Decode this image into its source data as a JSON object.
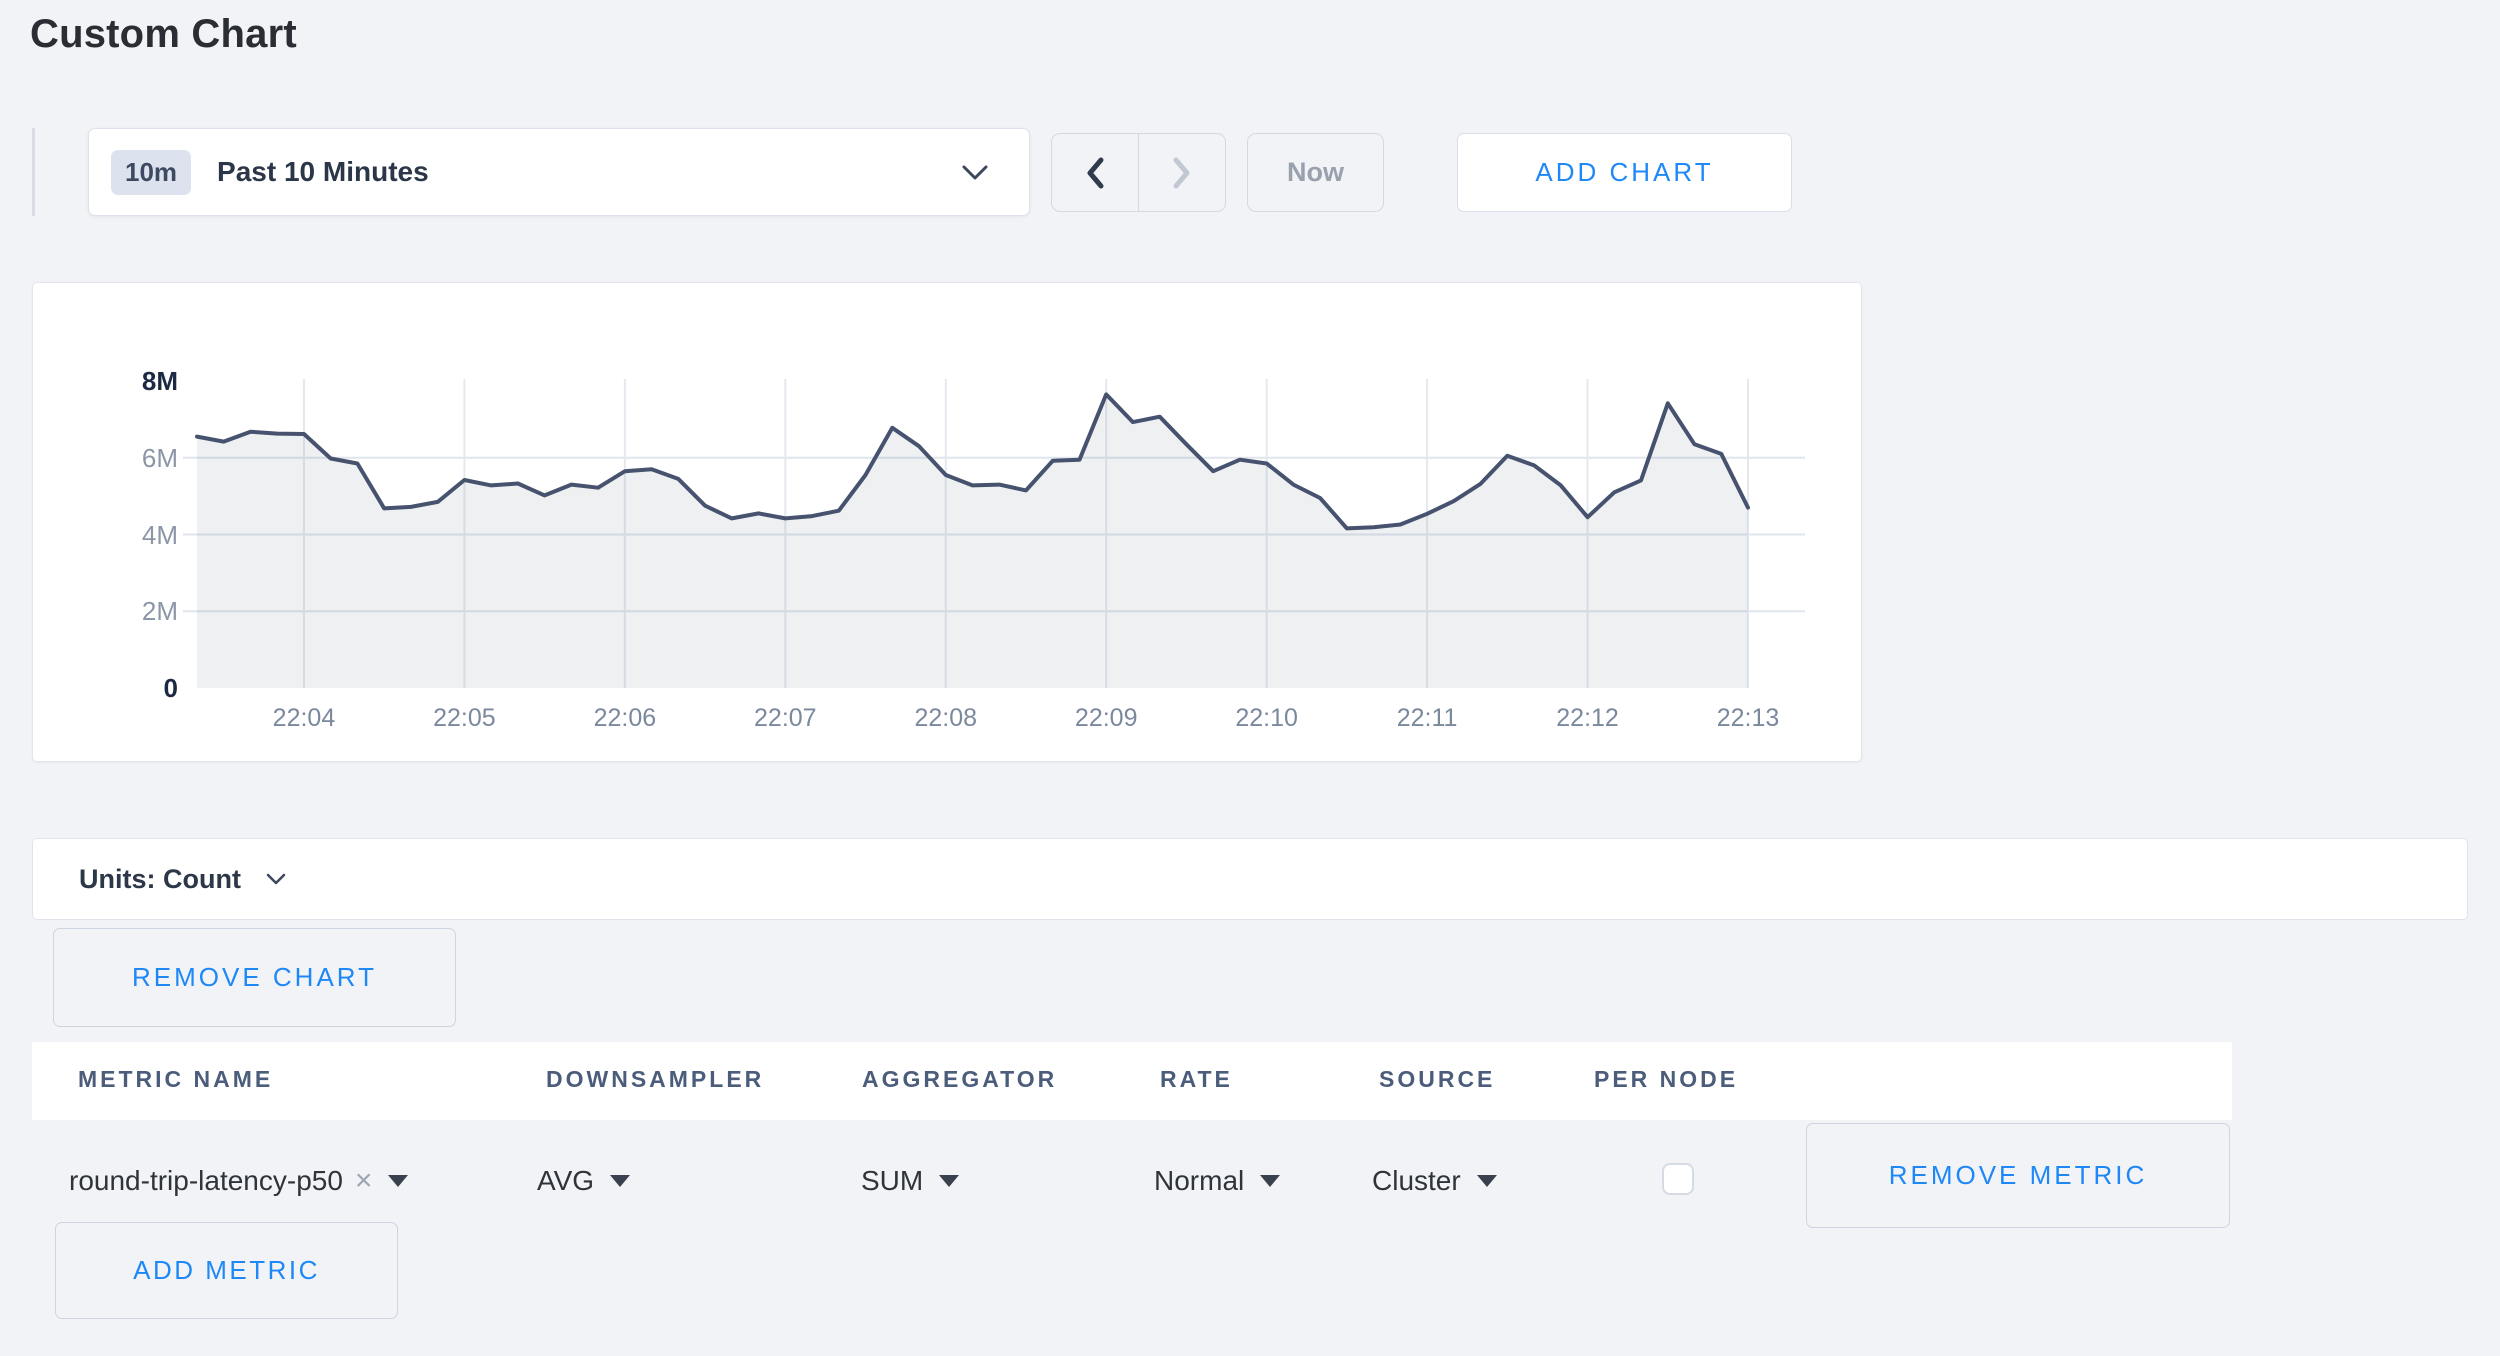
{
  "page": {
    "title": "Custom Chart"
  },
  "colors": {
    "accent_blue": "#1e88f7",
    "chart_line": "#46526e",
    "chart_fill": "#e9ecf1",
    "page_background": "#f2f3f6"
  },
  "toolbar": {
    "time_range_badge": "10m",
    "time_range_label": "Past 10 Minutes",
    "now_label": "Now",
    "add_chart_label": "ADD CHART"
  },
  "units_bar": {
    "label": "Units: Count"
  },
  "buttons": {
    "remove_chart": "REMOVE CHART",
    "remove_metric": "REMOVE METRIC",
    "add_metric": "ADD METRIC"
  },
  "metrics_table": {
    "headers": [
      "METRIC NAME",
      "DOWNSAMPLER",
      "AGGREGATOR",
      "RATE",
      "SOURCE",
      "PER NODE"
    ],
    "row": {
      "metric_name": "round-trip-latency-p50",
      "downsampler": "AVG",
      "aggregator": "SUM",
      "rate": "Normal",
      "source": "Cluster",
      "per_node_checked": false
    }
  },
  "chart_data": {
    "type": "area",
    "title": "",
    "series_name": "round-trip-latency-p50",
    "x_unit": "time (HH:MM:SS)",
    "y_unit": "count",
    "value_scale": "millions",
    "ylim_millions": [
      0,
      8
    ],
    "grid": true,
    "legend": "none",
    "y_ticks": [
      {
        "label": "8M",
        "value": 8,
        "strong": true
      },
      {
        "label": "6M",
        "value": 6,
        "strong": false
      },
      {
        "label": "4M",
        "value": 4,
        "strong": false
      },
      {
        "label": "2M",
        "value": 2,
        "strong": false
      },
      {
        "label": "0",
        "value": 0,
        "strong": true
      }
    ],
    "x_ticks": [
      "22:04",
      "22:05",
      "22:06",
      "22:07",
      "22:08",
      "22:09",
      "22:10",
      "22:11",
      "22:12",
      "22:13"
    ],
    "x": [
      "22:03:20",
      "22:03:30",
      "22:03:40",
      "22:03:50",
      "22:04:00",
      "22:04:10",
      "22:04:20",
      "22:04:30",
      "22:04:40",
      "22:04:50",
      "22:05:00",
      "22:05:10",
      "22:05:20",
      "22:05:30",
      "22:05:40",
      "22:05:50",
      "22:06:00",
      "22:06:10",
      "22:06:20",
      "22:06:30",
      "22:06:40",
      "22:06:50",
      "22:07:00",
      "22:07:10",
      "22:07:20",
      "22:07:30",
      "22:07:40",
      "22:07:50",
      "22:08:00",
      "22:08:10",
      "22:08:20",
      "22:08:30",
      "22:08:40",
      "22:08:50",
      "22:09:00",
      "22:09:10",
      "22:09:20",
      "22:09:30",
      "22:09:40",
      "22:09:50",
      "22:10:00",
      "22:10:10",
      "22:10:20",
      "22:10:30",
      "22:10:40",
      "22:10:50",
      "22:11:00",
      "22:11:10",
      "22:11:20",
      "22:11:30",
      "22:11:40",
      "22:11:50",
      "22:12:00",
      "22:12:10",
      "22:12:20",
      "22:12:30",
      "22:12:40",
      "22:12:50",
      "22:13:00"
    ],
    "values_millions": [
      6.55,
      6.42,
      6.68,
      6.63,
      6.62,
      5.98,
      5.85,
      4.68,
      4.72,
      4.85,
      5.42,
      5.28,
      5.33,
      5.02,
      5.3,
      5.22,
      5.65,
      5.7,
      5.45,
      4.75,
      4.42,
      4.55,
      4.42,
      4.48,
      4.62,
      5.55,
      6.78,
      6.3,
      5.55,
      5.28,
      5.3,
      5.15,
      5.92,
      5.95,
      7.65,
      6.93,
      7.07,
      6.35,
      5.65,
      5.95,
      5.85,
      5.3,
      4.95,
      4.16,
      4.19,
      4.26,
      4.54,
      4.87,
      5.32,
      6.05,
      5.8,
      5.28,
      4.45,
      5.1,
      5.41,
      7.42,
      6.35,
      6.1,
      4.7
    ]
  }
}
